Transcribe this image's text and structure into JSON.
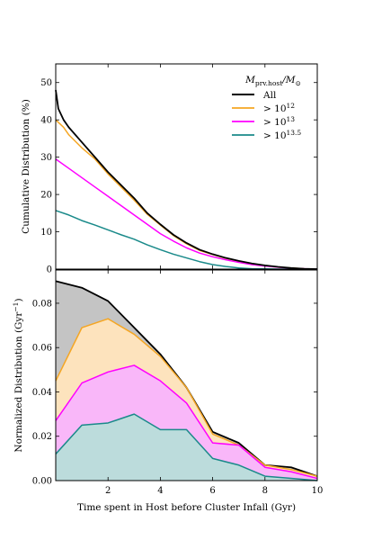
{
  "figure": {
    "xlabel": "Time spent in Host before Cluster Infall (Gyr)"
  },
  "chart_data": [
    {
      "type": "line",
      "ylabel": "Cumulative Distribution (%)",
      "xlim": [
        0,
        10
      ],
      "ylim": [
        0,
        55
      ],
      "xticks": [
        2,
        4,
        6,
        8,
        10
      ],
      "yticks": [
        0,
        10,
        20,
        30,
        40,
        50
      ],
      "xtick_labels": [],
      "ytick_labels": [
        "0",
        "10",
        "20",
        "30",
        "40",
        "50"
      ],
      "grid": false,
      "legend": {
        "placement": "top-right",
        "title_main": "M",
        "title_sub": "prv.host",
        "title_sep": "/M",
        "title_sun": "⊙",
        "labels": [
          {
            "base": "All",
            "exp": ""
          },
          {
            "base": "> 10",
            "exp": "12"
          },
          {
            "base": "> 10",
            "exp": "13"
          },
          {
            "base": "> 10",
            "exp": "13.5"
          }
        ]
      },
      "series": [
        {
          "name": "All",
          "color": "#000000",
          "x": [
            0,
            0.1,
            0.3,
            0.5,
            1,
            1.5,
            2,
            2.5,
            3,
            3.5,
            4,
            4.5,
            5,
            5.5,
            6,
            6.5,
            7,
            7.5,
            8,
            8.5,
            9,
            9.5,
            10
          ],
          "y": [
            48,
            43,
            40,
            38,
            34,
            30,
            26,
            22.5,
            19,
            15,
            12,
            9.2,
            7,
            5.2,
            4,
            3,
            2.2,
            1.5,
            1,
            0.6,
            0.3,
            0.1,
            0
          ]
        },
        {
          "name": "> 10^12",
          "color": "#f5a623",
          "x": [
            0,
            0.3,
            0.5,
            1,
            1.5,
            2,
            2.5,
            3,
            3.5,
            4,
            4.5,
            5,
            5.5,
            6,
            6.5,
            7,
            7.5,
            8,
            8.5,
            9,
            9.5,
            10
          ],
          "y": [
            40,
            38,
            36,
            32.5,
            29.5,
            25.5,
            22,
            18.5,
            14.7,
            11.8,
            9,
            6.8,
            5,
            3.9,
            2.9,
            2.1,
            1.4,
            0.9,
            0.5,
            0.3,
            0.1,
            0
          ]
        },
        {
          "name": "> 10^13",
          "color": "#ff00ff",
          "x": [
            0,
            0.5,
            1,
            1.5,
            2,
            2.5,
            3,
            3.5,
            4,
            4.5,
            5,
            5.5,
            6,
            6.5,
            7,
            7.5,
            8,
            8.5,
            9,
            9.5,
            10
          ],
          "y": [
            29.5,
            27,
            24.5,
            22,
            19.5,
            17,
            14.5,
            12,
            9.5,
            7.5,
            5.7,
            4.3,
            3.3,
            2.5,
            1.8,
            1.2,
            0.8,
            0.5,
            0.2,
            0.1,
            0
          ]
        },
        {
          "name": "> 10^13.5",
          "color": "#1a8a8a",
          "x": [
            0,
            0.5,
            1,
            1.5,
            2,
            2.5,
            3,
            3.5,
            4,
            4.5,
            5,
            5.5,
            6,
            6.5,
            7,
            7.5,
            8,
            8.5,
            9,
            9.5,
            10
          ],
          "y": [
            15.7,
            14.5,
            13,
            11.8,
            10.5,
            9.2,
            8,
            6.5,
            5.2,
            4,
            3,
            2,
            1.2,
            0.7,
            0.3,
            0.1,
            0.05,
            0,
            0,
            0,
            0
          ]
        }
      ]
    },
    {
      "type": "area",
      "ylabel": "Normalized Distribution (Gyr",
      "ylabel_exp": "−1",
      "ylabel_close": ")",
      "xlim": [
        0,
        10
      ],
      "ylim": [
        0,
        0.095
      ],
      "xticks": [
        2,
        4,
        6,
        8,
        10
      ],
      "yticks": [
        0,
        0.02,
        0.04,
        0.06,
        0.08
      ],
      "xtick_labels": [
        "2",
        "4",
        "6",
        "8",
        "10"
      ],
      "ytick_labels": [
        "0.00",
        "0.02",
        "0.04",
        "0.06",
        "0.08"
      ],
      "grid": false,
      "series": [
        {
          "name": "All",
          "line_color": "#000000",
          "fill_color": "#c4c4c4",
          "x": [
            0,
            1,
            2,
            3,
            4,
            5,
            6,
            7,
            8,
            9,
            10
          ],
          "y": [
            0.09,
            0.087,
            0.081,
            0.069,
            0.057,
            0.042,
            0.022,
            0.017,
            0.007,
            0.006,
            0.002
          ]
        },
        {
          "name": "> 10^12",
          "line_color": "#f5a623",
          "fill_color": "#fde3bd",
          "x": [
            0,
            1,
            2,
            3,
            4,
            5,
            6,
            7,
            8,
            9,
            10
          ],
          "y": [
            0.045,
            0.069,
            0.073,
            0.066,
            0.056,
            0.042,
            0.021,
            0.016,
            0.007,
            0.005,
            0.002
          ]
        },
        {
          "name": "> 10^13",
          "line_color": "#ff00ff",
          "fill_color": "#f9b7f9",
          "x": [
            0,
            1,
            2,
            3,
            4,
            5,
            6,
            7,
            8,
            9,
            10
          ],
          "y": [
            0.027,
            0.044,
            0.049,
            0.052,
            0.045,
            0.035,
            0.017,
            0.016,
            0.006,
            0.004,
            0.001
          ]
        },
        {
          "name": "> 10^13.5",
          "line_color": "#1a8a8a",
          "fill_color": "#bcdcdc",
          "x": [
            0,
            1,
            2,
            3,
            4,
            5,
            6,
            7,
            8,
            9,
            10
          ],
          "y": [
            0.012,
            0.025,
            0.026,
            0.03,
            0.023,
            0.023,
            0.01,
            0.007,
            0.002,
            0.001,
            0.0
          ]
        }
      ]
    }
  ]
}
